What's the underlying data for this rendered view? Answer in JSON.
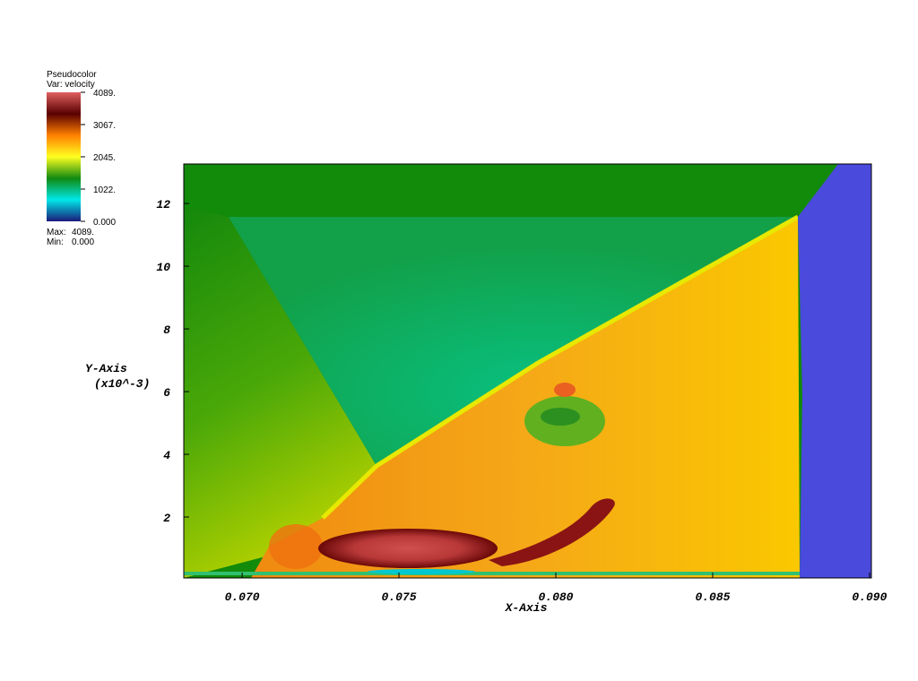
{
  "chart_data": {
    "type": "pseudocolor",
    "legend_title": "Pseudocolor",
    "legend_var": "Var: velocity",
    "clim": [
      0,
      4089
    ],
    "cticks": [
      {
        "value": 4089,
        "label": "4089."
      },
      {
        "value": 3067,
        "label": "3067."
      },
      {
        "value": 2045,
        "label": "2045."
      },
      {
        "value": 1022,
        "label": "1022."
      },
      {
        "value": 0,
        "label": "0.000"
      }
    ],
    "colormap": [
      "#1a1a7a",
      "#00e8e8",
      "#108a10",
      "#ffff20",
      "#ff8000",
      "#5a0000",
      "#e06060"
    ],
    "max_label": "Max:",
    "max": {
      "value": 4089,
      "label": "4089."
    },
    "min_label": "Min:",
    "min": {
      "value": 0,
      "label": "0.000"
    },
    "xlabel": "X-Axis",
    "ylabel": "Y-Axis",
    "ylabel_scale": "(x10^-3)",
    "xlim": [
      0.06814,
      0.09006
    ],
    "ylim": [
      0.057,
      13.26
    ],
    "xticks": [
      {
        "value": 0.07,
        "label": "0.070"
      },
      {
        "value": 0.075,
        "label": "0.075"
      },
      {
        "value": 0.08,
        "label": "0.080"
      },
      {
        "value": 0.085,
        "label": "0.085"
      },
      {
        "value": 0.09,
        "label": "0.090"
      }
    ],
    "yticks": [
      2,
      4,
      6,
      8,
      10,
      12
    ]
  }
}
